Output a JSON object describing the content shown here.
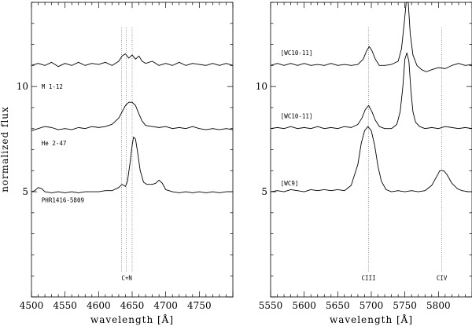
{
  "chart_data": [
    {
      "type": "line",
      "ylabel": "normalized flux",
      "xlabel": "wavelength [Å]",
      "xlim": [
        4500,
        4800
      ],
      "ylim": [
        0,
        14
      ],
      "x_ticks": [
        4500,
        4550,
        4600,
        4650,
        4700,
        4750
      ],
      "y_ticks_labeled": [
        5,
        10
      ],
      "grid": false,
      "vertical_markers": [
        4634,
        4641,
        4650
      ],
      "marker_labels": [
        {
          "text": "C+N",
          "x": 4642
        }
      ],
      "series": [
        {
          "name": "M 1-12",
          "label_x": 4515,
          "label_y": 9.9,
          "points": [
            [
              4500,
              11.0
            ],
            [
              4510,
              11.1
            ],
            [
              4520,
              11.0
            ],
            [
              4530,
              11.15
            ],
            [
              4540,
              10.95
            ],
            [
              4550,
              11.1
            ],
            [
              4560,
              11.0
            ],
            [
              4570,
              11.15
            ],
            [
              4580,
              11.0
            ],
            [
              4590,
              11.1
            ],
            [
              4600,
              11.05
            ],
            [
              4610,
              11.15
            ],
            [
              4620,
              11.0
            ],
            [
              4630,
              11.2
            ],
            [
              4635,
              11.45
            ],
            [
              4640,
              11.55
            ],
            [
              4645,
              11.35
            ],
            [
              4650,
              11.5
            ],
            [
              4655,
              11.3
            ],
            [
              4660,
              11.45
            ],
            [
              4665,
              11.2
            ],
            [
              4670,
              11.1
            ],
            [
              4680,
              11.2
            ],
            [
              4690,
              11.0
            ],
            [
              4700,
              11.1
            ],
            [
              4710,
              11.0
            ],
            [
              4720,
              11.15
            ],
            [
              4730,
              11.0
            ],
            [
              4740,
              11.1
            ],
            [
              4750,
              11.05
            ],
            [
              4760,
              11.0
            ],
            [
              4770,
              11.1
            ],
            [
              4780,
              11.0
            ],
            [
              4790,
              11.1
            ],
            [
              4800,
              11.0
            ]
          ]
        },
        {
          "name": "He 2-47",
          "label_x": 4515,
          "label_y": 7.2,
          "points": [
            [
              4500,
              7.9
            ],
            [
              4510,
              8.0
            ],
            [
              4520,
              8.1
            ],
            [
              4530,
              8.05
            ],
            [
              4540,
              7.95
            ],
            [
              4550,
              8.0
            ],
            [
              4560,
              7.95
            ],
            [
              4570,
              8.05
            ],
            [
              4580,
              8.0
            ],
            [
              4590,
              8.1
            ],
            [
              4600,
              8.05
            ],
            [
              4610,
              8.1
            ],
            [
              4620,
              8.2
            ],
            [
              4630,
              8.5
            ],
            [
              4635,
              8.8
            ],
            [
              4640,
              9.1
            ],
            [
              4645,
              9.25
            ],
            [
              4650,
              9.25
            ],
            [
              4655,
              9.1
            ],
            [
              4660,
              8.7
            ],
            [
              4665,
              8.35
            ],
            [
              4670,
              8.15
            ],
            [
              4680,
              8.1
            ],
            [
              4690,
              8.05
            ],
            [
              4700,
              8.1
            ],
            [
              4710,
              8.0
            ],
            [
              4720,
              8.05
            ],
            [
              4730,
              8.0
            ],
            [
              4740,
              8.1
            ],
            [
              4750,
              8.0
            ],
            [
              4760,
              7.95
            ],
            [
              4770,
              8.0
            ],
            [
              4780,
              7.95
            ],
            [
              4790,
              8.0
            ],
            [
              4800,
              7.95
            ]
          ]
        },
        {
          "name": "PHR1416-5809",
          "label_x": 4515,
          "label_y": 4.5,
          "points": [
            [
              4500,
              5.0
            ],
            [
              4505,
              5.05
            ],
            [
              4510,
              5.2
            ],
            [
              4515,
              5.15
            ],
            [
              4520,
              5.0
            ],
            [
              4530,
              4.95
            ],
            [
              4540,
              5.0
            ],
            [
              4550,
              4.95
            ],
            [
              4560,
              5.0
            ],
            [
              4570,
              4.95
            ],
            [
              4580,
              5.0
            ],
            [
              4590,
              5.0
            ],
            [
              4600,
              5.0
            ],
            [
              4610,
              5.05
            ],
            [
              4620,
              5.05
            ],
            [
              4630,
              5.2
            ],
            [
              4635,
              5.35
            ],
            [
              4640,
              5.25
            ],
            [
              4643,
              5.5
            ],
            [
              4647,
              6.4
            ],
            [
              4650,
              7.2
            ],
            [
              4652,
              7.6
            ],
            [
              4655,
              7.5
            ],
            [
              4658,
              6.9
            ],
            [
              4662,
              6.0
            ],
            [
              4667,
              5.45
            ],
            [
              4672,
              5.35
            ],
            [
              4680,
              5.35
            ],
            [
              4685,
              5.4
            ],
            [
              4690,
              5.55
            ],
            [
              4695,
              5.4
            ],
            [
              4700,
              5.1
            ],
            [
              4710,
              5.0
            ],
            [
              4720,
              4.95
            ],
            [
              4730,
              5.0
            ],
            [
              4740,
              4.95
            ],
            [
              4750,
              5.0
            ],
            [
              4760,
              4.95
            ],
            [
              4770,
              5.0
            ],
            [
              4780,
              4.95
            ],
            [
              4790,
              5.0
            ],
            [
              4800,
              5.0
            ]
          ]
        }
      ]
    },
    {
      "type": "line",
      "ylabel": "",
      "xlabel": "wavelength [Å]",
      "xlim": [
        5550,
        5850
      ],
      "ylim": [
        0,
        14
      ],
      "x_ticks": [
        5550,
        5600,
        5650,
        5700,
        5750,
        5800
      ],
      "y_ticks_labeled": [
        5,
        10
      ],
      "grid": false,
      "vertical_markers": [
        5696,
        5805
      ],
      "marker_labels": [
        {
          "text": "CIII",
          "x": 5696
        },
        {
          "text": "CIV",
          "x": 5805
        }
      ],
      "series": [
        {
          "name": "[WC10-11]",
          "label_x": 5565,
          "label_y": 11.5,
          "points": [
            [
              5550,
              11.0
            ],
            [
              5560,
              11.1
            ],
            [
              5570,
              11.0
            ],
            [
              5580,
              11.1
            ],
            [
              5590,
              11.0
            ],
            [
              5600,
              11.1
            ],
            [
              5610,
              11.0
            ],
            [
              5620,
              11.05
            ],
            [
              5630,
              11.0
            ],
            [
              5640,
              11.1
            ],
            [
              5650,
              11.0
            ],
            [
              5660,
              11.05
            ],
            [
              5670,
              11.0
            ],
            [
              5680,
              11.05
            ],
            [
              5688,
              11.3
            ],
            [
              5693,
              11.7
            ],
            [
              5697,
              11.9
            ],
            [
              5701,
              11.7
            ],
            [
              5706,
              11.3
            ],
            [
              5712,
              11.0
            ],
            [
              5720,
              11.0
            ],
            [
              5730,
              11.05
            ],
            [
              5740,
              11.2
            ],
            [
              5745,
              11.8
            ],
            [
              5749,
              13.0
            ],
            [
              5752,
              14.0
            ],
            [
              5755,
              14.0
            ],
            [
              5758,
              12.5
            ],
            [
              5762,
              11.5
            ],
            [
              5768,
              11.0
            ],
            [
              5775,
              10.8
            ],
            [
              5782,
              10.7
            ],
            [
              5790,
              10.8
            ],
            [
              5800,
              10.9
            ],
            [
              5810,
              10.85
            ],
            [
              5820,
              11.0
            ],
            [
              5830,
              11.1
            ],
            [
              5840,
              11.0
            ],
            [
              5850,
              11.05
            ]
          ]
        },
        {
          "name": "[WC10-11]",
          "label_x": 5565,
          "label_y": 8.5,
          "points": [
            [
              5550,
              8.0
            ],
            [
              5560,
              8.05
            ],
            [
              5570,
              8.0
            ],
            [
              5580,
              8.1
            ],
            [
              5590,
              8.0
            ],
            [
              5600,
              8.05
            ],
            [
              5610,
              8.0
            ],
            [
              5620,
              8.1
            ],
            [
              5630,
              8.0
            ],
            [
              5640,
              8.05
            ],
            [
              5650,
              8.0
            ],
            [
              5660,
              8.1
            ],
            [
              5670,
              8.05
            ],
            [
              5680,
              8.2
            ],
            [
              5686,
              8.5
            ],
            [
              5691,
              8.9
            ],
            [
              5696,
              9.1
            ],
            [
              5701,
              8.8
            ],
            [
              5706,
              8.4
            ],
            [
              5712,
              8.1
            ],
            [
              5720,
              8.0
            ],
            [
              5730,
              8.0
            ],
            [
              5738,
              8.2
            ],
            [
              5743,
              8.8
            ],
            [
              5747,
              10.0
            ],
            [
              5750,
              11.3
            ],
            [
              5753,
              11.6
            ],
            [
              5756,
              11.2
            ],
            [
              5759,
              9.8
            ],
            [
              5762,
              8.8
            ],
            [
              5766,
              8.3
            ],
            [
              5772,
              8.1
            ],
            [
              5780,
              8.0
            ],
            [
              5790,
              8.05
            ],
            [
              5800,
              8.0
            ],
            [
              5810,
              8.1
            ],
            [
              5820,
              8.05
            ],
            [
              5830,
              8.0
            ],
            [
              5840,
              8.05
            ],
            [
              5850,
              8.0
            ]
          ]
        },
        {
          "name": "[WC9]",
          "label_x": 5565,
          "label_y": 5.3,
          "points": [
            [
              5550,
              5.0
            ],
            [
              5560,
              5.05
            ],
            [
              5570,
              5.0
            ],
            [
              5580,
              5.1
            ],
            [
              5590,
              5.05
            ],
            [
              5600,
              5.0
            ],
            [
              5610,
              5.1
            ],
            [
              5620,
              5.05
            ],
            [
              5630,
              5.1
            ],
            [
              5640,
              5.05
            ],
            [
              5650,
              5.1
            ],
            [
              5660,
              5.05
            ],
            [
              5670,
              5.3
            ],
            [
              5680,
              6.3
            ],
            [
              5685,
              7.3
            ],
            [
              5690,
              7.9
            ],
            [
              5695,
              8.1
            ],
            [
              5700,
              7.9
            ],
            [
              5705,
              7.2
            ],
            [
              5710,
              6.2
            ],
            [
              5715,
              5.5
            ],
            [
              5722,
              5.1
            ],
            [
              5730,
              5.0
            ],
            [
              5740,
              5.05
            ],
            [
              5750,
              5.0
            ],
            [
              5760,
              5.05
            ],
            [
              5770,
              5.0
            ],
            [
              5780,
              5.05
            ],
            [
              5790,
              5.3
            ],
            [
              5797,
              5.7
            ],
            [
              5802,
              6.0
            ],
            [
              5808,
              6.0
            ],
            [
              5813,
              5.8
            ],
            [
              5820,
              5.4
            ],
            [
              5828,
              5.15
            ],
            [
              5835,
              5.05
            ],
            [
              5845,
              5.0
            ],
            [
              5850,
              5.0
            ]
          ]
        }
      ]
    }
  ]
}
